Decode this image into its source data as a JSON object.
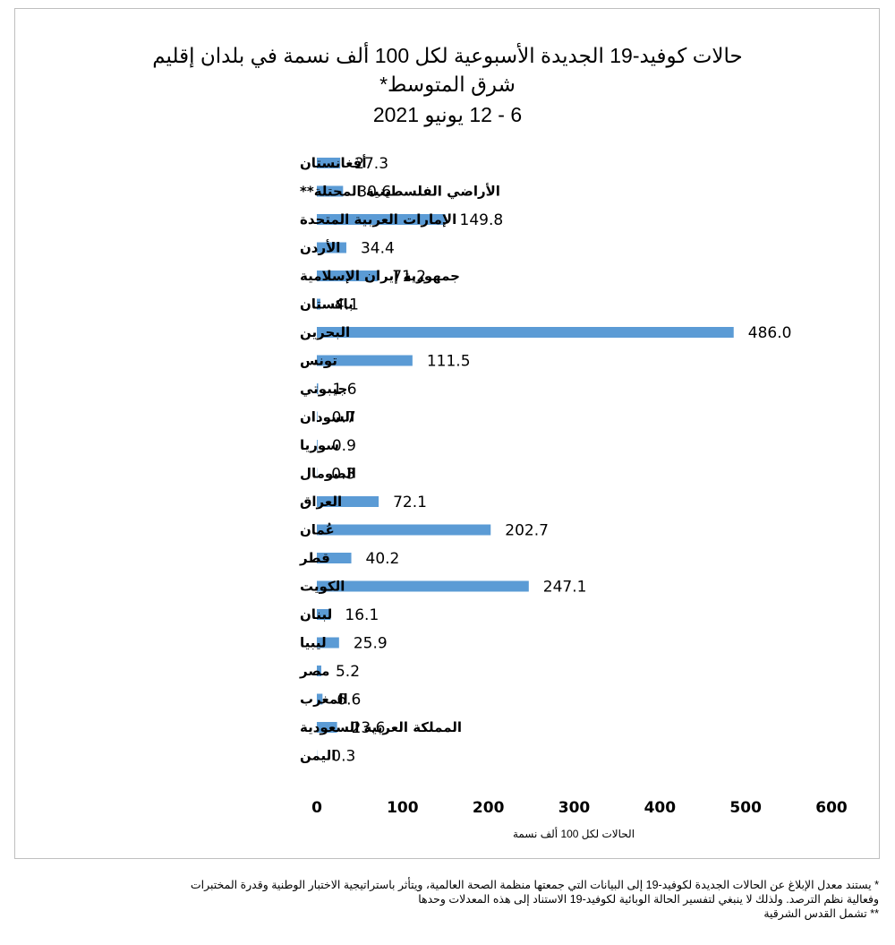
{
  "chart_data": {
    "type": "bar",
    "orientation": "horizontal",
    "title_lines": [
      "حالات كوفيد-19 الجديدة الأسبوعية لكل 100 ألف نسمة في بلدان إقليم",
      "شرق المتوسط*",
      "6 - 12 يونيو 2021"
    ],
    "categories": [
      "أفغانستان",
      "الأراضي الفلسطينية المحتلة**",
      "الإمارات العربية المتحدة",
      "الأردن",
      "جمهورية إيران الإسلامية",
      "باكستان",
      "البحرين",
      "تونس",
      "جيبوتي",
      "السودان",
      "سوريا",
      "الصومال",
      "العراق",
      "عُمان",
      "قطر",
      "الكويت",
      "لبنان",
      "ليبيا",
      "مصر",
      "المغرب",
      "المملكة العربية السعودية",
      "اليمن"
    ],
    "values": [
      27.3,
      30.6,
      149.8,
      34.4,
      71.2,
      4.1,
      486.0,
      111.5,
      1.6,
      0.7,
      0.9,
      0.3,
      72.1,
      202.7,
      40.2,
      247.1,
      16.1,
      25.9,
      5.2,
      6.6,
      23.6,
      0.3
    ],
    "value_labels": [
      "27.3",
      "30.6",
      "149.8",
      "34.4",
      "71.2",
      "4.1",
      "486.0",
      "111.5",
      "1.6",
      "0.7",
      "0.9",
      "0.3",
      "72.1",
      "202.7",
      "40.2",
      "247.1",
      "16.1",
      "25.9",
      "5.2",
      "6.6",
      "23.6",
      "0.3"
    ],
    "xlabel": "الحالات لكل 100 ألف نسمة",
    "xlim": [
      0,
      600
    ],
    "xticks": [
      "0",
      "100",
      "200",
      "300",
      "400",
      "500",
      "600"
    ],
    "grid": false,
    "legend": "none",
    "bar_color": "#5b9bd5"
  },
  "footnotes": [
    "* يستند معدل الإبلاغ عن الحالات الجديدة لكوفيد-19 إلى البيانات التي جمعتها منظمة الصحة العالمية، ويتأثر باستراتيجية الاختبار الوطنية وقدرة المختبرات",
    "وفعالية نظم الترصد. ولذلك لا ينبغي لتفسير الحالة الوبائية لكوفيد-19 الاستناد إلى هذه المعدلات وحدها",
    "** تشمل القدس الشرقية"
  ]
}
